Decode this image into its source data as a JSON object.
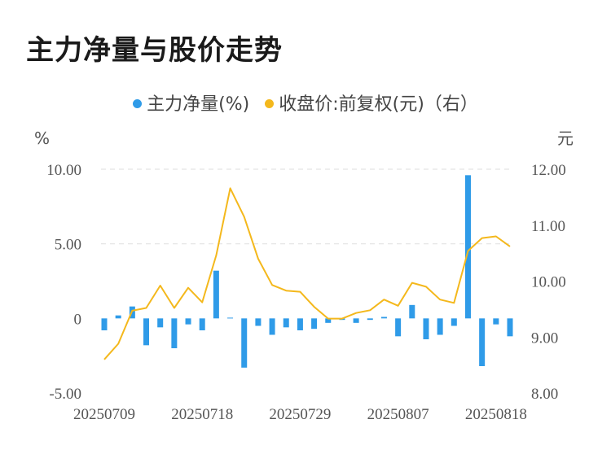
{
  "title": "主力净量与股价走势",
  "legend": [
    {
      "label": "主力净量(%)",
      "color": "#2f9be8"
    },
    {
      "label": "收盘价:前复权(元)（右）",
      "color": "#f4b81c"
    }
  ],
  "chart_data": {
    "type": "bar+line",
    "title": "主力净量与股价走势",
    "left_unit": "%",
    "right_unit": "元",
    "left_axis": {
      "min": -5,
      "max": 10,
      "ticks": [
        "10.00",
        "5.00",
        "0",
        "-5.00"
      ],
      "tick_values": [
        10,
        5,
        0,
        -5
      ]
    },
    "right_axis": {
      "min": 8,
      "max": 12,
      "ticks": [
        "12.00",
        "11.00",
        "10.00",
        "9.00",
        "8.00"
      ],
      "tick_values": [
        12,
        11,
        10,
        9,
        8
      ]
    },
    "x_labels": [
      "20250709",
      "20250718",
      "20250729",
      "20250807",
      "20250818"
    ],
    "x_label_index": [
      0,
      7,
      14,
      21,
      28
    ],
    "count": 30,
    "series": [
      {
        "name": "主力净量(%)",
        "type": "bar",
        "color": "#2f9be8",
        "values": [
          -0.8,
          0.2,
          0.8,
          -1.8,
          -0.6,
          -2.0,
          -0.4,
          -0.8,
          3.2,
          0.05,
          -3.3,
          -0.5,
          -1.1,
          -0.6,
          -0.8,
          -0.7,
          -0.3,
          -0.1,
          -0.3,
          -0.1,
          0.1,
          -1.2,
          0.9,
          -1.4,
          -1.1,
          -0.5,
          9.6,
          -3.2,
          -0.4,
          -1.2
        ]
      },
      {
        "name": "收盘价:前复权(元)（右）",
        "type": "line",
        "color": "#f4b81c",
        "values": [
          8.6,
          8.88,
          9.47,
          9.52,
          9.92,
          9.52,
          9.88,
          9.62,
          10.46,
          11.66,
          11.15,
          10.4,
          9.93,
          9.83,
          9.81,
          9.54,
          9.33,
          9.33,
          9.43,
          9.48,
          9.67,
          9.56,
          9.97,
          9.9,
          9.67,
          9.61,
          10.54,
          10.77,
          10.8,
          10.62
        ]
      }
    ]
  }
}
